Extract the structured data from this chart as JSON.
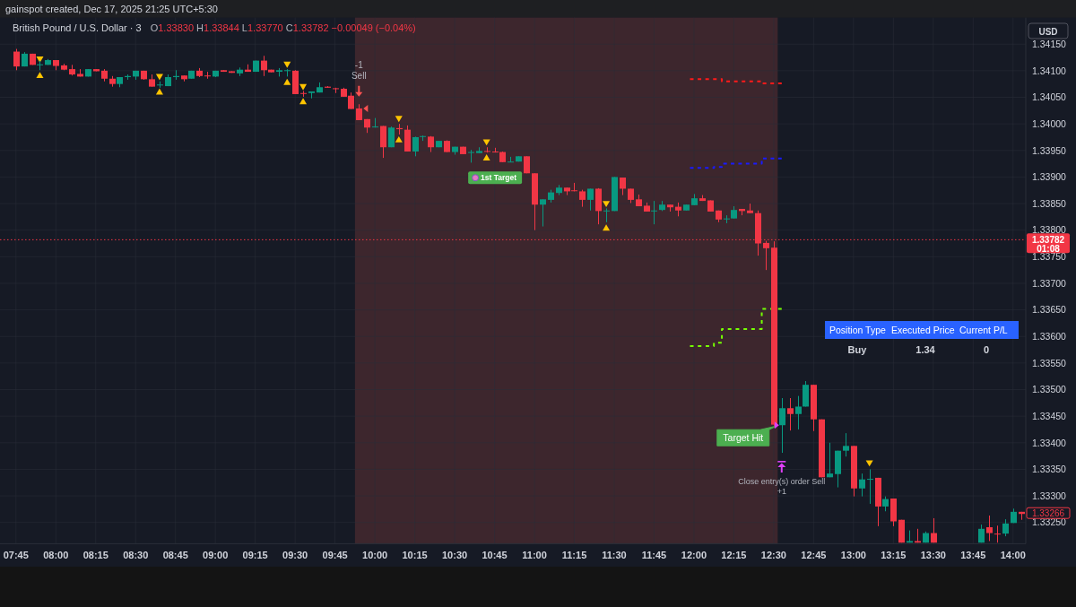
{
  "chart_data": {
    "type": "candlestick",
    "title": "British Pound / U.S. Dollar · 3",
    "subtitle": "O1.33830 H1.33844 L1.33770 C1.33782 −0.00049 (−0.04%)",
    "x": [
      7.75,
      7.8,
      7.85,
      7.9,
      7.95,
      8,
      8.05,
      8.1,
      8.15,
      8.2,
      8.25,
      8.3,
      8.35,
      8.4,
      8.45,
      8.5,
      8.55,
      8.6,
      8.65,
      8.7,
      8.75,
      8.8,
      8.85,
      8.9,
      8.95,
      9,
      9.05,
      9.1,
      9.15,
      9.2,
      9.25,
      9.3,
      9.35,
      9.4,
      9.45,
      9.5,
      9.55,
      9.6,
      9.65,
      9.7,
      9.75,
      9.8,
      9.85,
      9.9,
      9.95,
      10,
      10.05,
      10.1,
      10.15,
      10.2,
      10.25,
      10.3,
      10.35,
      10.4,
      10.45,
      10.5,
      10.55,
      10.6,
      10.65,
      10.7,
      10.75,
      10.8,
      10.85,
      10.9,
      10.95,
      11,
      11.05,
      11.1,
      11.15,
      11.2,
      11.25,
      11.3,
      11.35,
      11.4,
      11.45,
      11.5,
      11.55,
      11.6,
      11.65,
      11.7,
      11.75,
      11.8,
      11.85,
      11.9,
      11.95,
      12,
      12.05,
      12.1,
      12.15,
      12.2,
      12.25,
      12.3,
      12.35,
      12.4,
      12.45,
      12.5,
      12.55,
      12.6,
      12.65,
      12.7,
      12.75,
      12.8,
      12.85,
      12.9,
      12.95,
      13,
      13.05,
      13.1,
      13.15,
      13.2,
      13.25,
      13.3,
      13.35,
      13.4,
      13.45,
      13.5,
      13.8,
      13.85,
      13.9,
      13.95,
      14,
      14.05
    ],
    "ohlc": [
      [
        1.34136,
        1.34141,
        1.34101,
        1.34108
      ],
      [
        1.34108,
        1.34135,
        1.34108,
        1.34132
      ],
      [
        1.34132,
        1.34132,
        1.34111,
        1.34111
      ],
      [
        1.34111,
        1.34119,
        1.34101,
        1.34112
      ],
      [
        1.34111,
        1.34122,
        1.34111,
        1.3412
      ],
      [
        1.3412,
        1.3412,
        1.34101,
        1.34109
      ],
      [
        1.3411,
        1.34113,
        1.34101,
        1.34102
      ],
      [
        1.34103,
        1.34111,
        1.34091,
        1.34093
      ],
      [
        1.34094,
        1.34103,
        1.34089,
        1.34089
      ],
      [
        1.34089,
        1.34103,
        1.34089,
        1.34103
      ],
      [
        1.34103,
        1.34103,
        1.34099,
        1.34099
      ],
      [
        1.341,
        1.34103,
        1.3408,
        1.34085
      ],
      [
        1.34085,
        1.3409,
        1.3407,
        1.34075
      ],
      [
        1.34075,
        1.34088,
        1.34069,
        1.34088
      ],
      [
        1.34088,
        1.34093,
        1.34083,
        1.3409
      ],
      [
        1.34089,
        1.341,
        1.34083,
        1.341
      ],
      [
        1.341,
        1.341,
        1.34083,
        1.34084
      ],
      [
        1.34084,
        1.34093,
        1.3407,
        1.3407
      ],
      [
        1.34073,
        1.3408,
        1.34068,
        1.34074
      ],
      [
        1.34071,
        1.34093,
        1.34071,
        1.34088
      ],
      [
        1.34088,
        1.34101,
        1.34083,
        1.3409
      ],
      [
        1.34091,
        1.34091,
        1.3408,
        1.34084
      ],
      [
        1.34085,
        1.341,
        1.34085,
        1.341
      ],
      [
        1.341,
        1.34105,
        1.34088,
        1.3409
      ],
      [
        1.34091,
        1.34098,
        1.34085,
        1.3409
      ],
      [
        1.34089,
        1.341,
        1.34088,
        1.341
      ],
      [
        1.34101,
        1.34101,
        1.34098,
        1.34098
      ],
      [
        1.34099,
        1.34099,
        1.34096,
        1.34096
      ],
      [
        1.34095,
        1.34106,
        1.3409,
        1.34102
      ],
      [
        1.34102,
        1.34112,
        1.34098,
        1.34098
      ],
      [
        1.34098,
        1.34119,
        1.34098,
        1.34119
      ],
      [
        1.34119,
        1.34128,
        1.3409,
        1.34101
      ],
      [
        1.34102,
        1.34102,
        1.34097,
        1.34097
      ],
      [
        1.34098,
        1.34105,
        1.34089,
        1.34101
      ],
      [
        1.341,
        1.34103,
        1.34089,
        1.34101
      ],
      [
        1.341,
        1.34101,
        1.34056,
        1.34056
      ],
      [
        1.34058,
        1.34062,
        1.34051,
        1.34057
      ],
      [
        1.34058,
        1.34061,
        1.34048,
        1.34061
      ],
      [
        1.34059,
        1.34078,
        1.34059,
        1.34069
      ],
      [
        1.3407,
        1.34071,
        1.34068,
        1.34068
      ],
      [
        1.34067,
        1.34068,
        1.34058,
        1.34066
      ],
      [
        1.34066,
        1.34068,
        1.34051,
        1.34051
      ],
      [
        1.34053,
        1.34059,
        1.34028,
        1.34028
      ],
      [
        1.34029,
        1.34037,
        1.34007,
        1.34007
      ],
      [
        1.34009,
        1.34009,
        1.33983,
        1.33993
      ],
      [
        1.33994,
        1.34011,
        1.33993,
        1.33995
      ],
      [
        1.33996,
        1.33996,
        1.33936,
        1.33956
      ],
      [
        1.33956,
        1.33995,
        1.33956,
        1.33993
      ],
      [
        1.33992,
        1.34,
        1.3398,
        1.3399
      ],
      [
        1.33989,
        1.33997,
        1.33948,
        1.33948
      ],
      [
        1.33948,
        1.33976,
        1.33939,
        1.33975
      ],
      [
        1.33976,
        1.33978,
        1.33968,
        1.33977
      ],
      [
        1.33976,
        1.33977,
        1.33947,
        1.33956
      ],
      [
        1.33956,
        1.33968,
        1.33956,
        1.33968
      ],
      [
        1.33968,
        1.33969,
        1.33947,
        1.33947
      ],
      [
        1.33947,
        1.33957,
        1.33942,
        1.33957
      ],
      [
        1.33957,
        1.33957,
        1.33943,
        1.33943
      ],
      [
        1.33946,
        1.33951,
        1.33927,
        1.33947
      ],
      [
        1.33945,
        1.33956,
        1.33945,
        1.33949
      ],
      [
        1.33949,
        1.33956,
        1.33946,
        1.33948
      ],
      [
        1.33948,
        1.33955,
        1.33946,
        1.33947
      ],
      [
        1.33947,
        1.33948,
        1.33928,
        1.33928
      ],
      [
        1.33928,
        1.33938,
        1.33928,
        1.33929
      ],
      [
        1.33929,
        1.33939,
        1.33929,
        1.33939
      ],
      [
        1.33939,
        1.33939,
        1.33907,
        1.33907
      ],
      [
        1.33907,
        1.33907,
        1.338,
        1.33848
      ],
      [
        1.33848,
        1.33858,
        1.33807,
        1.33858
      ],
      [
        1.33857,
        1.33876,
        1.33852,
        1.33871
      ],
      [
        1.3387,
        1.33885,
        1.33866,
        1.3388
      ],
      [
        1.3388,
        1.3388,
        1.33866,
        1.33873
      ],
      [
        1.33875,
        1.33889,
        1.33873,
        1.33874
      ],
      [
        1.33873,
        1.33876,
        1.33844,
        1.33857
      ],
      [
        1.33857,
        1.33878,
        1.33837,
        1.33878
      ],
      [
        1.33878,
        1.33879,
        1.33811,
        1.33836
      ],
      [
        1.33836,
        1.33841,
        1.33815,
        1.33837
      ],
      [
        1.33836,
        1.339,
        1.33836,
        1.339
      ],
      [
        1.33899,
        1.33899,
        1.33866,
        1.33878
      ],
      [
        1.33878,
        1.33878,
        1.33851,
        1.33857
      ],
      [
        1.33858,
        1.33867,
        1.33845,
        1.33845
      ],
      [
        1.33846,
        1.33852,
        1.33835,
        1.33835
      ],
      [
        1.33836,
        1.33855,
        1.33811,
        1.33837
      ],
      [
        1.33838,
        1.33855,
        1.33836,
        1.33848
      ],
      [
        1.33848,
        1.33848,
        1.33835,
        1.33843
      ],
      [
        1.33844,
        1.33852,
        1.33826,
        1.33837
      ],
      [
        1.33837,
        1.33848,
        1.33837,
        1.33848
      ],
      [
        1.33847,
        1.33868,
        1.33847,
        1.3386
      ],
      [
        1.3386,
        1.33866,
        1.33855,
        1.33855
      ],
      [
        1.33856,
        1.33856,
        1.33835,
        1.33835
      ],
      [
        1.33837,
        1.33837,
        1.33815,
        1.3382
      ],
      [
        1.33821,
        1.33828,
        1.33813,
        1.33822
      ],
      [
        1.33822,
        1.33845,
        1.33822,
        1.33838
      ],
      [
        1.3384,
        1.3384,
        1.33828,
        1.33836
      ],
      [
        1.33837,
        1.3385,
        1.33832,
        1.33832
      ],
      [
        1.33832,
        1.33837,
        1.33752,
        1.33775
      ],
      [
        1.33776,
        1.3378,
        1.33725,
        1.33766
      ],
      [
        1.33767,
        1.33779,
        1.33432,
        1.33434
      ],
      [
        1.33433,
        1.33484,
        1.33381,
        1.33465
      ],
      [
        1.33465,
        1.33484,
        1.33423,
        1.33454
      ],
      [
        1.33454,
        1.33488,
        1.33425,
        1.33468
      ],
      [
        1.33468,
        1.33516,
        1.33468,
        1.33509
      ],
      [
        1.33509,
        1.33509,
        1.33422,
        1.33444
      ],
      [
        1.33444,
        1.33444,
        1.33335,
        1.33335
      ],
      [
        1.33335,
        1.334,
        1.33335,
        1.33342
      ],
      [
        1.33341,
        1.33385,
        1.33316,
        1.33385
      ],
      [
        1.33385,
        1.33418,
        1.33374,
        1.33394
      ],
      [
        1.33394,
        1.33394,
        1.33299,
        1.33314
      ],
      [
        1.33314,
        1.33342,
        1.33299,
        1.33331
      ],
      [
        1.33331,
        1.3335,
        1.33285,
        1.33332
      ],
      [
        1.33334,
        1.33334,
        1.33243,
        1.3328
      ],
      [
        1.3328,
        1.33299,
        1.33271,
        1.33294
      ],
      [
        1.33295,
        1.33295,
        1.33243,
        1.33252
      ],
      [
        1.33255,
        1.33255,
        1.33212,
        1.33212
      ],
      [
        1.33212,
        1.33235,
        1.33212,
        1.33215
      ],
      [
        1.33215,
        1.33238,
        1.33212,
        1.33212
      ],
      [
        1.33212,
        1.33233,
        1.33212,
        1.3323
      ],
      [
        1.3323,
        1.33258,
        1.33212,
        1.33212
      ],
      [
        1.33212,
        1.33246,
        1.33212,
        1.33238
      ],
      [
        1.33241,
        1.33263,
        1.33215,
        1.3323
      ],
      [
        1.33229,
        1.33244,
        1.33212,
        1.33228
      ],
      [
        1.33229,
        1.33256,
        1.33224,
        1.33248
      ],
      [
        1.33249,
        1.33276,
        1.33249,
        1.3327
      ],
      [
        1.3327,
        1.3327,
        1.33255,
        1.33266
      ]
    ],
    "colors": [
      "#f23645",
      "#089981",
      "#f23645",
      "#089981",
      "#089981",
      "#f23645",
      "#f23645",
      "#f23645",
      "#f23645",
      "#089981",
      "#f23645",
      "#f23645",
      "#f23645",
      "#089981",
      "#089981",
      "#089981",
      "#f23645",
      "#f23645",
      "#089981",
      "#089981",
      "#089981",
      "#f23645",
      "#089981",
      "#f23645",
      "#f23645",
      "#089981",
      "#f23645",
      "#f23645",
      "#089981",
      "#f23645",
      "#089981",
      "#f23645",
      "#f23645",
      "#089981",
      "#089981",
      "#f23645",
      "#f23645",
      "#089981",
      "#089981",
      "#f23645",
      "#f23645",
      "#f23645",
      "#f23645",
      "#f23645",
      "#f23645",
      "#089981",
      "#f23645",
      "#089981",
      "#f23645",
      "#f23645",
      "#089981",
      "#089981",
      "#f23645",
      "#089981",
      "#f23645",
      "#089981",
      "#f23645",
      "#089981",
      "#089981",
      "#f23645",
      "#f23645",
      "#f23645",
      "#089981",
      "#089981",
      "#f23645",
      "#f23645",
      "#089981",
      "#089981",
      "#089981",
      "#f23645",
      "#f23645",
      "#f23645",
      "#089981",
      "#f23645",
      "#089981",
      "#089981",
      "#f23645",
      "#f23645",
      "#f23645",
      "#f23645",
      "#089981",
      "#089981",
      "#f23645",
      "#f23645",
      "#089981",
      "#089981",
      "#f23645",
      "#f23645",
      "#f23645",
      "#089981",
      "#089981",
      "#f23645",
      "#f23645",
      "#f23645",
      "#f23645",
      "#f23645",
      "#089981",
      "#f23645",
      "#089981",
      "#089981",
      "#f23645",
      "#f23645",
      "#089981",
      "#089981",
      "#089981",
      "#f23645",
      "#089981",
      "#089981",
      "#f23645",
      "#089981",
      "#f23645",
      "#f23645",
      "#089981",
      "#f23645",
      "#089981",
      "#f23645",
      "#089981",
      "#f23645",
      "#f23645",
      "#089981",
      "#089981",
      "#f23645"
    ],
    "series": [
      {
        "type": "scatter",
        "marker": "triangle",
        "color": "#ffc400",
        "x": [
          7.9,
          8.65,
          9.45,
          9.55,
          10.15,
          10.7,
          11.45
        ],
        "values": [
          1.3409,
          1.34059,
          1.34077,
          1.34041,
          1.33969,
          1.33935,
          1.33803
        ]
      },
      {
        "type": "scatter",
        "marker": "triangle",
        "color": "#ffc400",
        "x": [
          7.9,
          8.65,
          9.45,
          9.55,
          10.15,
          10.7,
          11.45,
          13.1
        ],
        "values": [
          1.34123,
          1.3409,
          1.34113,
          1.34071,
          1.34011,
          1.33967,
          1.33851,
          1.33363
        ]
      },
      {
        "type": "step",
        "line_style": "dashed",
        "color": "#ff1a1a",
        "x": [
          11.975,
          12.175,
          12.425,
          12.55
        ],
        "values": [
          1.34084,
          1.3408,
          1.34076,
          1.34076
        ]
      },
      {
        "type": "step",
        "line_style": "dashed",
        "color": "#1a1aff",
        "x": [
          11.975,
          12.125,
          12.175,
          12.425,
          12.55
        ],
        "values": [
          1.33917,
          1.33919,
          1.33925,
          1.33935,
          1.33935
        ]
      },
      {
        "type": "step",
        "line_style": "dashed",
        "color": "#76ff03",
        "x": [
          11.975,
          12.125,
          12.175,
          12.425,
          12.55
        ],
        "values": [
          1.33582,
          1.33588,
          1.33614,
          1.33652,
          1.33652
        ]
      }
    ],
    "xlim": [
      7.65,
      14.08
    ],
    "xticks": [
      {
        "value": 7.75,
        "label": "07:45"
      },
      {
        "value": 8,
        "label": "08:00"
      },
      {
        "value": 8.25,
        "label": "08:15"
      },
      {
        "value": 8.5,
        "label": "08:30"
      },
      {
        "value": 8.75,
        "label": "08:45"
      },
      {
        "value": 9,
        "label": "09:00"
      },
      {
        "value": 9.25,
        "label": "09:15"
      },
      {
        "value": 9.5,
        "label": "09:30"
      },
      {
        "value": 9.75,
        "label": "09:45"
      },
      {
        "value": 10,
        "label": "10:00"
      },
      {
        "value": 10.25,
        "label": "10:15"
      },
      {
        "value": 10.5,
        "label": "10:30"
      },
      {
        "value": 10.75,
        "label": "10:45"
      },
      {
        "value": 11,
        "label": "11:00"
      },
      {
        "value": 11.25,
        "label": "11:15"
      },
      {
        "value": 11.5,
        "label": "11:30"
      },
      {
        "value": 11.75,
        "label": "11:45"
      },
      {
        "value": 12,
        "label": "12:00"
      },
      {
        "value": 12.25,
        "label": "12:15"
      },
      {
        "value": 12.5,
        "label": "12:30"
      },
      {
        "value": 12.75,
        "label": "12:45"
      },
      {
        "value": 13,
        "label": "13:00"
      },
      {
        "value": 13.25,
        "label": "13:15"
      },
      {
        "value": 13.5,
        "label": "13:30"
      },
      {
        "value": 13.75,
        "label": "13:45"
      },
      {
        "value": 14,
        "label": "14:00"
      }
    ],
    "ylim": [
      1.3321,
      1.342
    ],
    "yticks": [
      {
        "value": 1.3325,
        "label": "1.33250"
      },
      {
        "value": 1.333,
        "label": "1.33300"
      },
      {
        "value": 1.3335,
        "label": "1.33350"
      },
      {
        "value": 1.334,
        "label": "1.33400"
      },
      {
        "value": 1.3345,
        "label": "1.33450"
      },
      {
        "value": 1.335,
        "label": "1.33500"
      },
      {
        "value": 1.3355,
        "label": "1.33550"
      },
      {
        "value": 1.336,
        "label": "1.33600"
      },
      {
        "value": 1.3365,
        "label": "1.33650"
      },
      {
        "value": 1.337,
        "label": "1.33700"
      },
      {
        "value": 1.3375,
        "label": "1.33750"
      },
      {
        "value": 1.338,
        "label": "1.33800"
      },
      {
        "value": 1.3385,
        "label": "1.33850"
      },
      {
        "value": 1.339,
        "label": "1.33900"
      },
      {
        "value": 1.3395,
        "label": "1.33950"
      },
      {
        "value": 1.34,
        "label": "1.34000"
      },
      {
        "value": 1.3405,
        "label": "1.34050"
      },
      {
        "value": 1.341,
        "label": "1.34100"
      },
      {
        "value": 1.3415,
        "label": "1.34150"
      }
    ],
    "grid": true,
    "bands": [
      {
        "axis": "x",
        "from": 9.875,
        "to": 12.525,
        "color": "#3d262d"
      }
    ],
    "ref_lines": [
      {
        "axis": "y",
        "value": 1.33782,
        "label": "1.33782\n01:08",
        "color": "#f23645",
        "line_style": "dotted"
      }
    ],
    "annotations": [
      "gainspot created, Dec 17, 2025 21:25 UTC+5:30",
      "USD",
      {
        "text": "-1",
        "x": 9.9,
        "y": 1.3411
      },
      {
        "text": "Sell",
        "x": 9.9,
        "y": 1.3409
      },
      {
        "text": "1st Target",
        "x": 10.95,
        "y": 1.33907
      },
      {
        "text": "Target Hit",
        "x": 12.55,
        "y": 1.33433
      },
      {
        "text": "Close entry(s) order Sell",
        "x": 12.55,
        "y": 1.33327
      },
      {
        "text": "+1",
        "x": 12.55,
        "y": 1.33309
      },
      "Position Type",
      "Executed Price",
      "Current P/L",
      "Buy",
      "1.34",
      "0",
      {
        "text": "1.33266",
        "x": 14.05,
        "y": 1.33266
      }
    ]
  }
}
